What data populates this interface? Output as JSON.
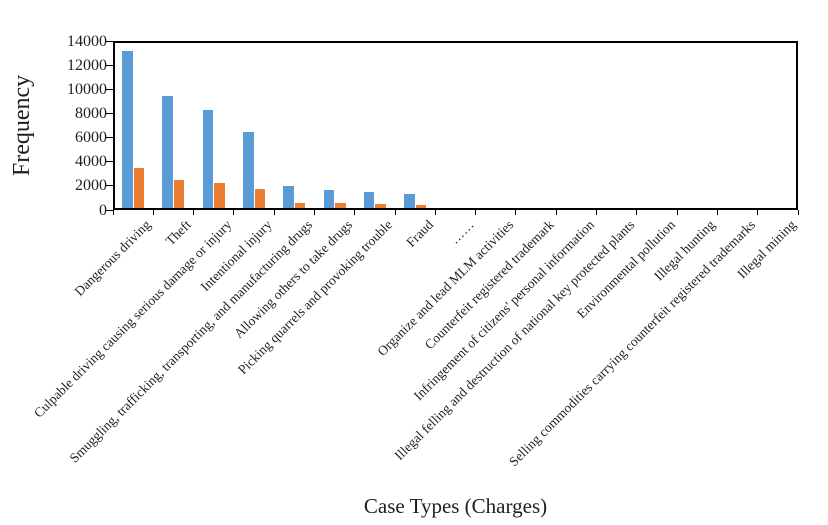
{
  "chart_data": {
    "type": "bar",
    "title": "",
    "xlabel": "Case Types (Charges)",
    "ylabel": "Frequency",
    "ylim": [
      0,
      14000
    ],
    "ytick_interval": 2000,
    "ytick_labels": [
      "0",
      "2000",
      "4000",
      "6000",
      "8000",
      "10000",
      "12000",
      "14000"
    ],
    "grid": false,
    "legend_position": "none",
    "categories": [
      "Dangerous driving",
      "Theft",
      "Culpable driving causing serious damage or injury",
      "Intentional injury",
      "Smuggling, trafficking, transporting, and manufacturing drugs",
      "Allowing others to take drugs",
      "Picking quarrels and provoking trouble",
      "Fraud",
      "……",
      "Organize and lead MLM activities",
      "Counterfeit registered trademark",
      "Infringement of citizens' personal information",
      "Illegal felling and destruction of national key protected plants",
      "Environmental pollution",
      "Illegal hunting",
      "Selling commodities carrying counterfeit registered trademarks",
      "Illegal mining"
    ],
    "series": [
      {
        "name": "blue",
        "color": "#5B9BD5",
        "values": [
          13000,
          9300,
          8100,
          6300,
          1850,
          1450,
          1300,
          1200,
          0,
          0,
          0,
          0,
          0,
          0,
          0,
          0,
          0
        ]
      },
      {
        "name": "orange",
        "color": "#ED7D31",
        "values": [
          3300,
          2350,
          2100,
          1600,
          450,
          380,
          300,
          250,
          0,
          0,
          0,
          0,
          0,
          0,
          0,
          0,
          0
        ]
      }
    ],
    "axis_color": "#000000",
    "text_color": "#1f1f1f"
  }
}
